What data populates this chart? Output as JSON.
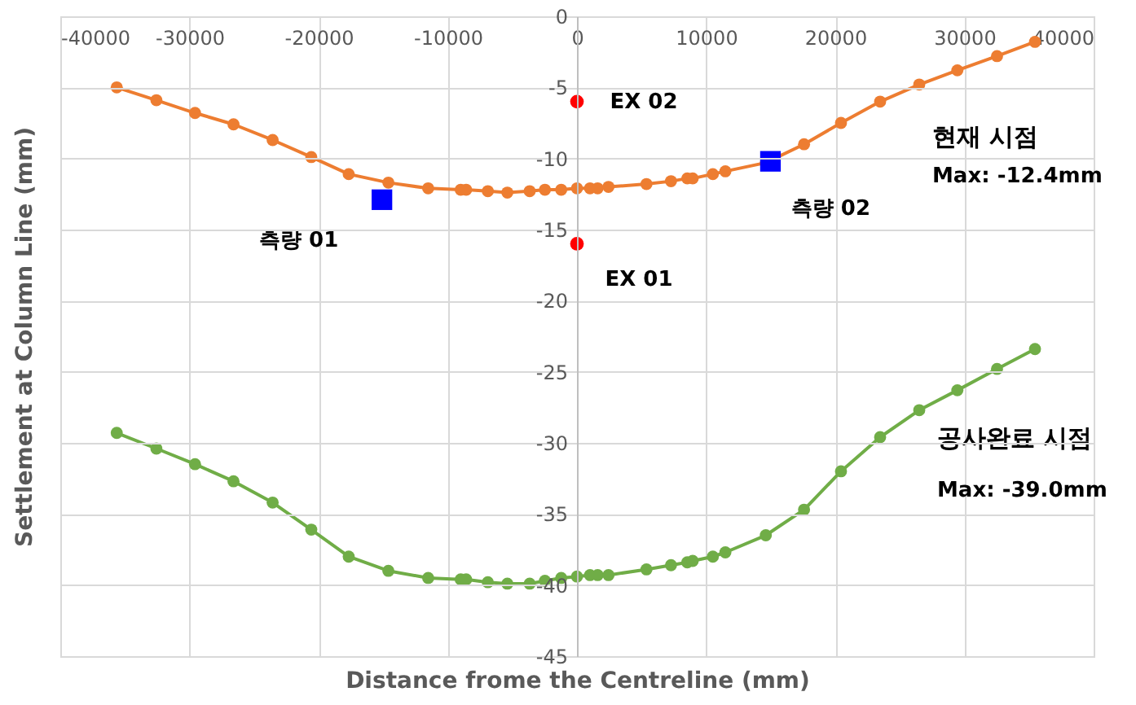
{
  "chart_data": {
    "type": "line",
    "xlabel": "Distance frome the Centreline (mm)",
    "ylabel": "Settlement at Column Line (mm)",
    "x": [
      -35630,
      -32560,
      -29570,
      -26590,
      -23560,
      -20570,
      -17670,
      -14600,
      -11520,
      -9000,
      -8580,
      -6900,
      -5390,
      -3660,
      -2480,
      -1220,
      0,
      1010,
      1600,
      2440,
      5380,
      7280,
      8540,
      8960,
      10520,
      11490,
      14620,
      17580,
      20440,
      23470,
      26500,
      29450,
      32520,
      35460
    ],
    "series": [
      {
        "name": "현재 시점",
        "color": "#ed7d31",
        "values": [
          -5.0,
          -5.9,
          -6.8,
          -7.6,
          -8.7,
          -9.9,
          -11.1,
          -11.7,
          -12.1,
          -12.2,
          -12.2,
          -12.3,
          -12.4,
          -12.3,
          -12.2,
          -12.2,
          -12.1,
          -12.1,
          -12.1,
          -12.0,
          -11.8,
          -11.6,
          -11.4,
          -11.4,
          -11.1,
          -10.9,
          -10.3,
          -9.0,
          -7.5,
          -6.0,
          -4.8,
          -3.8,
          -2.8,
          -1.8
        ]
      },
      {
        "name": "공사완료 시점",
        "color": "#70ad47",
        "values": [
          -29.3,
          -30.4,
          -31.5,
          -32.7,
          -34.2,
          -36.1,
          -38.0,
          -39.0,
          -39.5,
          -39.6,
          -39.6,
          -39.8,
          -39.9,
          -39.9,
          -39.7,
          -39.5,
          -39.4,
          -39.3,
          -39.3,
          -39.3,
          -38.9,
          -38.6,
          -38.4,
          -38.3,
          -38.0,
          -37.7,
          -36.5,
          -34.7,
          -32.0,
          -29.6,
          -27.7,
          -26.3,
          -24.8,
          -23.4
        ]
      },
      {
        "type": "scatter",
        "marker": "square",
        "color": "#0000ff",
        "x": [
          -15100,
          14980
        ],
        "values": [
          -12.9,
          -10.2
        ]
      },
      {
        "type": "scatter",
        "marker": "circle",
        "color": "#ff0000",
        "x": [
          0,
          0
        ],
        "values": [
          -6.0,
          -16.0
        ]
      }
    ],
    "xlim": [
      -40000,
      40000
    ],
    "xticks": [
      -40000,
      -30000,
      -20000,
      -10000,
      0,
      10000,
      20000,
      30000,
      40000
    ],
    "ylim": [
      -45,
      0
    ],
    "yticks": [
      -45,
      -40,
      -35,
      -30,
      -25,
      -20,
      -15,
      -10,
      -5,
      0
    ],
    "grid": true,
    "marker": "circle",
    "line_style": "solid",
    "annotations": [
      {
        "text": "EX 02",
        "x": 0,
        "y": -6.0
      },
      {
        "text": "EX 01",
        "x": 0,
        "y": -16.0
      },
      {
        "text": "측량 01",
        "x": -15100,
        "y": -12.9
      },
      {
        "text": "측량 02",
        "x": 14980,
        "y": -10.2
      },
      "Max: -12.4mm",
      "Max: -39.0mm"
    ]
  }
}
